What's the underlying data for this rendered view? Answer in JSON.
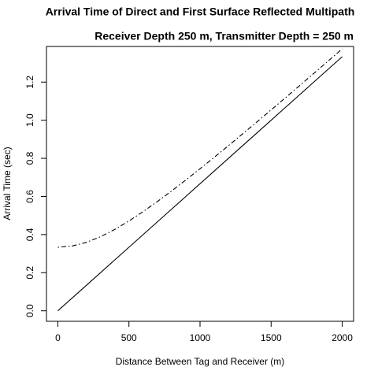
{
  "chart_data": {
    "type": "line",
    "title": "Arrival Time of Direct and First Surface Reflected Multipath",
    "subtitle": "Receiver Depth 250 m, Transmitter Depth = 250 m",
    "x_label": "Distance Between Tag and Receiver (m)",
    "y_label": "Arrival Time (sec)",
    "x": [
      0,
      100,
      200,
      300,
      400,
      500,
      600,
      700,
      800,
      900,
      1000,
      1100,
      1200,
      1300,
      1400,
      1500,
      1600,
      1700,
      1800,
      1900,
      2000
    ],
    "series": [
      {
        "color": "#000000",
        "dash": "solid",
        "values": [
          0,
          0.0667,
          0.1333,
          0.2,
          0.2667,
          0.3333,
          0.4,
          0.4667,
          0.5333,
          0.6,
          0.6667,
          0.7333,
          0.8,
          0.8667,
          0.9333,
          1.0,
          1.0667,
          1.1333,
          1.2,
          1.2667,
          1.3333
        ]
      },
      {
        "color": "#000000",
        "dash": "dotdash",
        "values": [
          0.3333,
          0.3399,
          0.359,
          0.3887,
          0.4269,
          0.4714,
          0.5207,
          0.5735,
          0.6289,
          0.6864,
          0.7454,
          0.8055,
          0.8667,
          0.9285,
          0.9911,
          1.0541,
          1.1175,
          1.1813,
          1.2455,
          1.3098,
          1.3744
        ]
      }
    ],
    "xlim": [
      -80,
      2080
    ],
    "ylim": [
      -0.055,
      1.387
    ],
    "xticks": [
      0,
      500,
      1000,
      1500,
      2000
    ],
    "yticks": [
      {
        "value": 0,
        "label": "0.0"
      },
      0.2,
      0.4,
      0.6,
      0.8,
      {
        "value": 1,
        "label": "1.0"
      },
      1.2
    ],
    "grid": false
  }
}
